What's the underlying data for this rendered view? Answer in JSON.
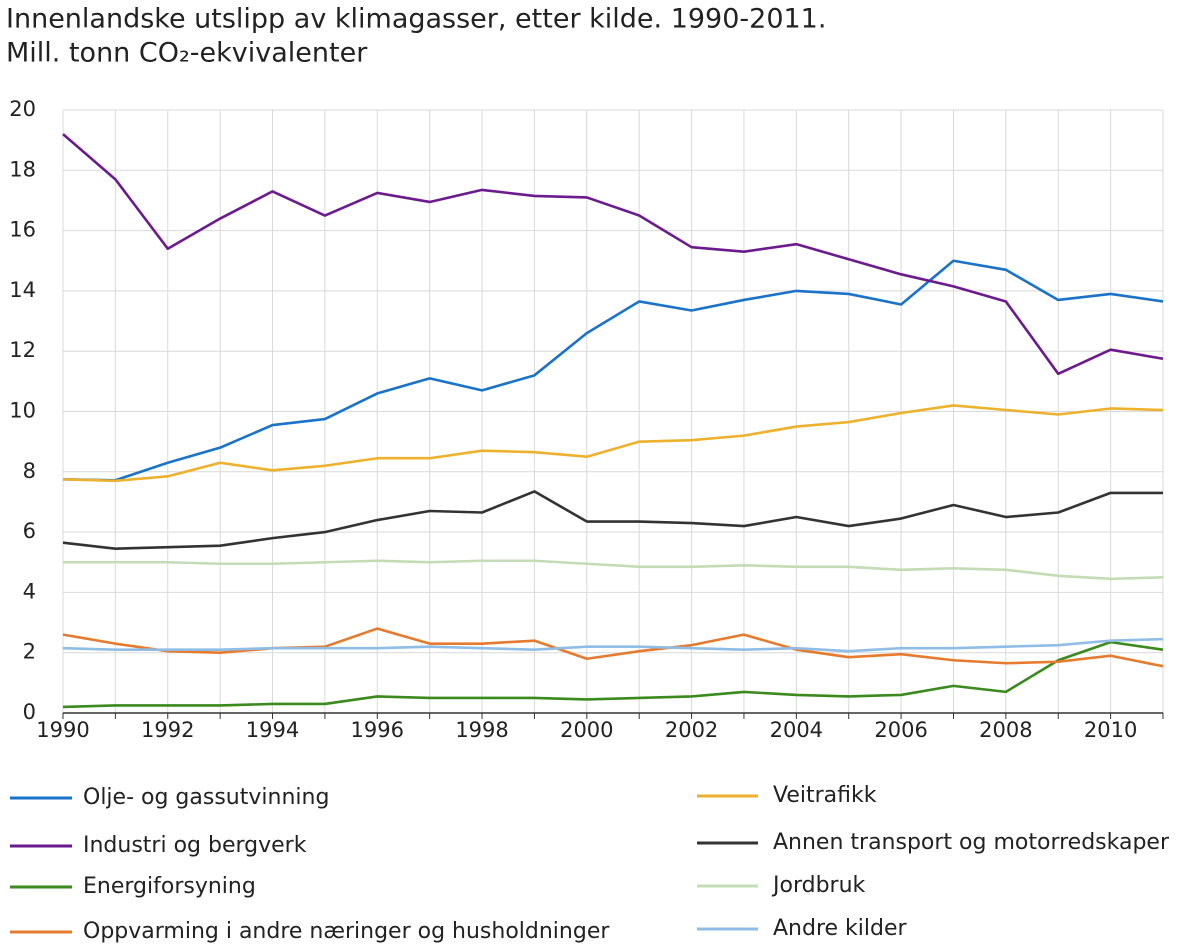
{
  "chart_data": {
    "type": "line",
    "title": "Innenlandske utslipp av klimagasser, etter kilde. 1990-2011.",
    "subtitle": "Mill. tonn CO₂-ekvivalenter",
    "x": [
      1990,
      1991,
      1992,
      1993,
      1994,
      1995,
      1996,
      1997,
      1998,
      1999,
      2000,
      2001,
      2002,
      2003,
      2004,
      2005,
      2006,
      2007,
      2008,
      2009,
      2010,
      2011
    ],
    "xlim": [
      1990,
      2011
    ],
    "xticks": [
      1990,
      1992,
      1994,
      1996,
      1998,
      2000,
      2002,
      2004,
      2006,
      2008,
      2010
    ],
    "ylim": [
      0,
      20
    ],
    "yticks": [
      0,
      2,
      4,
      6,
      8,
      10,
      12,
      14,
      16,
      18,
      20
    ],
    "grid": true,
    "legend": "bottom",
    "series": [
      {
        "name": "Olje- og gassutvinning",
        "color": "#1a73c9",
        "values": [
          7.75,
          7.72,
          8.3,
          8.8,
          9.55,
          9.75,
          10.6,
          11.1,
          10.7,
          11.2,
          12.6,
          13.65,
          13.35,
          13.7,
          14.0,
          13.9,
          13.55,
          15.0,
          14.7,
          13.7,
          13.9,
          13.65
        ]
      },
      {
        "name": "Industri og bergverk",
        "color": "#6b1b8d",
        "values": [
          19.2,
          17.7,
          15.4,
          16.4,
          17.3,
          16.5,
          17.25,
          16.95,
          17.35,
          17.15,
          17.1,
          16.5,
          15.45,
          15.3,
          15.55,
          15.05,
          14.55,
          14.15,
          13.65,
          11.25,
          12.05,
          11.75
        ]
      },
      {
        "name": "Energiforsyning",
        "color": "#3a8a1e",
        "values": [
          0.2,
          0.25,
          0.25,
          0.25,
          0.3,
          0.3,
          0.55,
          0.5,
          0.5,
          0.5,
          0.45,
          0.5,
          0.55,
          0.7,
          0.6,
          0.55,
          0.6,
          0.9,
          0.7,
          1.75,
          2.35,
          2.1
        ]
      },
      {
        "name": "Oppvarming i andre næringer og husholdninger",
        "color": "#e67a2e",
        "values": [
          2.6,
          2.3,
          2.05,
          2.0,
          2.15,
          2.2,
          2.8,
          2.3,
          2.3,
          2.4,
          1.8,
          2.05,
          2.25,
          2.6,
          2.1,
          1.85,
          1.95,
          1.75,
          1.65,
          1.7,
          1.9,
          1.55
        ]
      },
      {
        "name": "Veitrafikk",
        "color": "#eeb12d",
        "values": [
          7.75,
          7.7,
          7.85,
          8.3,
          8.05,
          8.2,
          8.45,
          8.45,
          8.7,
          8.65,
          8.5,
          9.0,
          9.05,
          9.2,
          9.5,
          9.65,
          9.95,
          10.2,
          10.05,
          9.9,
          10.1,
          10.05
        ]
      },
      {
        "name": "Annen transport og motorredskaper",
        "color": "#333333",
        "values": [
          5.65,
          5.45,
          5.5,
          5.55,
          5.8,
          6.0,
          6.4,
          6.7,
          6.65,
          7.35,
          6.35,
          6.35,
          6.3,
          6.2,
          6.5,
          6.2,
          6.45,
          6.9,
          6.5,
          6.65,
          7.3,
          7.3
        ]
      },
      {
        "name": "Jordbruk",
        "color": "#c3dcb5",
        "values": [
          5.0,
          5.0,
          5.0,
          4.95,
          4.95,
          5.0,
          5.05,
          5.0,
          5.05,
          5.05,
          4.95,
          4.85,
          4.85,
          4.9,
          4.85,
          4.85,
          4.75,
          4.8,
          4.75,
          4.55,
          4.45,
          4.5
        ]
      },
      {
        "name": "Andre kilder",
        "color": "#8fbde6",
        "values": [
          2.15,
          2.1,
          2.1,
          2.1,
          2.15,
          2.15,
          2.15,
          2.2,
          2.15,
          2.1,
          2.2,
          2.2,
          2.15,
          2.1,
          2.15,
          2.05,
          2.15,
          2.15,
          2.2,
          2.25,
          2.4,
          2.45
        ]
      }
    ]
  }
}
